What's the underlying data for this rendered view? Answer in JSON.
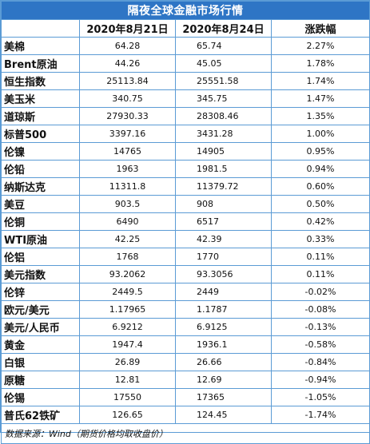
{
  "title": "隔夜全球金融市场行情",
  "headers": [
    "",
    "2020年8月21日",
    "2020年8月24日",
    "涨跌幅"
  ],
  "rows": [
    {
      "name": "美棉",
      "d1": "64.28",
      "d2": "65.74",
      "pct": "2.27%"
    },
    {
      "name": "Brent原油",
      "d1": "44.26",
      "d2": "45.05",
      "pct": "1.78%"
    },
    {
      "name": "恒生指数",
      "d1": "25113.84",
      "d2": "25551.58",
      "pct": "1.74%"
    },
    {
      "name": "美玉米",
      "d1": "340.75",
      "d2": "345.75",
      "pct": "1.47%"
    },
    {
      "name": "道琼斯",
      "d1": "27930.33",
      "d2": "28308.46",
      "pct": "1.35%"
    },
    {
      "name": "标普500",
      "d1": "3397.16",
      "d2": "3431.28",
      "pct": "1.00%"
    },
    {
      "name": "伦镍",
      "d1": "14765",
      "d2": "14905",
      "pct": "0.95%"
    },
    {
      "name": "伦铅",
      "d1": "1963",
      "d2": "1981.5",
      "pct": "0.94%"
    },
    {
      "name": "纳斯达克",
      "d1": "11311.8",
      "d2": "11379.72",
      "pct": "0.60%"
    },
    {
      "name": "美豆",
      "d1": "903.5",
      "d2": "908",
      "pct": "0.50%"
    },
    {
      "name": "伦铜",
      "d1": "6490",
      "d2": "6517",
      "pct": "0.42%"
    },
    {
      "name": "WTI原油",
      "d1": "42.25",
      "d2": "42.39",
      "pct": "0.33%"
    },
    {
      "name": "伦铝",
      "d1": "1768",
      "d2": "1770",
      "pct": "0.11%"
    },
    {
      "name": "美元指数",
      "d1": "93.2062",
      "d2": "93.3056",
      "pct": "0.11%"
    },
    {
      "name": "伦锌",
      "d1": "2449.5",
      "d2": "2449",
      "pct": "-0.02%"
    },
    {
      "name": "欧元/美元",
      "d1": "1.17965",
      "d2": "1.1787",
      "pct": "-0.08%"
    },
    {
      "name": "美元/人民币",
      "d1": "6.9212",
      "d2": "6.9125",
      "pct": "-0.13%"
    },
    {
      "name": "黄金",
      "d1": "1947.4",
      "d2": "1936.1",
      "pct": "-0.58%"
    },
    {
      "name": "白银",
      "d1": "26.89",
      "d2": "26.66",
      "pct": "-0.84%"
    },
    {
      "name": "原糖",
      "d1": "12.81",
      "d2": "12.69",
      "pct": "-0.94%"
    },
    {
      "name": "伦锡",
      "d1": "17550",
      "d2": "17365",
      "pct": "-1.05%"
    },
    {
      "name": "普氏62铁矿",
      "d1": "126.65",
      "d2": "124.45",
      "pct": "-1.74%"
    }
  ],
  "footnote": "数据来源：Wind（期货价格均取收盘价）",
  "colors": {
    "title_bg": "#2e75c5",
    "grid": "#5b9bd5",
    "title_text": "#ffffff"
  }
}
